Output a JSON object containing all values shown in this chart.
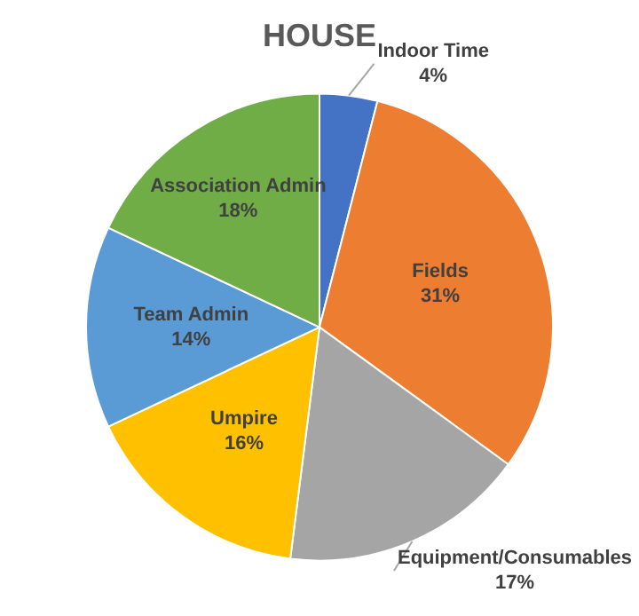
{
  "chart_data": {
    "type": "pie",
    "title": "HOUSE",
    "categories": [
      "Indoor Time",
      "Fields",
      "Equipment/Consumables",
      "Umpire",
      "Team Admin",
      "Association Admin"
    ],
    "values": [
      4,
      31,
      17,
      16,
      14,
      18
    ],
    "colors": [
      "#4472c4",
      "#ed7d31",
      "#a5a5a5",
      "#ffc000",
      "#5b9bd5",
      "#70ad47"
    ],
    "value_labels": [
      "4%",
      "31%",
      "17%",
      "16%",
      "14%",
      "18%"
    ],
    "legend": false
  }
}
